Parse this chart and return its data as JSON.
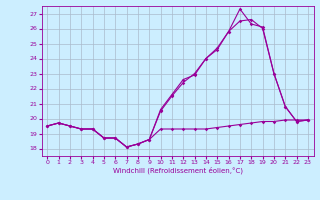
{
  "title": "",
  "xlabel": "Windchill (Refroidissement éolien,°C)",
  "background_color": "#cceeff",
  "line_color": "#990099",
  "grid_color": "#aabbcc",
  "xlim": [
    -0.5,
    23.5
  ],
  "ylim": [
    17.5,
    27.5
  ],
  "yticks": [
    18,
    19,
    20,
    21,
    22,
    23,
    24,
    25,
    26,
    27
  ],
  "xticks": [
    0,
    1,
    2,
    3,
    4,
    5,
    6,
    7,
    8,
    9,
    10,
    11,
    12,
    13,
    14,
    15,
    16,
    17,
    18,
    19,
    20,
    21,
    22,
    23
  ],
  "series1_x": [
    0,
    1,
    2,
    3,
    4,
    5,
    6,
    7,
    8,
    9,
    10,
    11,
    12,
    13,
    14,
    15,
    16,
    17,
    18,
    19,
    20,
    21,
    22,
    23
  ],
  "series1_y": [
    19.5,
    19.7,
    19.5,
    19.3,
    19.3,
    18.7,
    18.7,
    18.1,
    18.3,
    18.6,
    19.3,
    19.3,
    19.3,
    19.3,
    19.3,
    19.4,
    19.5,
    19.6,
    19.7,
    19.8,
    19.8,
    19.9,
    19.9,
    19.9
  ],
  "series2_x": [
    0,
    1,
    2,
    3,
    4,
    5,
    6,
    7,
    8,
    9,
    10,
    11,
    12,
    13,
    14,
    15,
    16,
    17,
    18,
    19,
    20,
    21,
    22,
    23
  ],
  "series2_y": [
    19.5,
    19.7,
    19.5,
    19.3,
    19.3,
    18.7,
    18.7,
    18.1,
    18.3,
    18.6,
    20.6,
    21.6,
    22.6,
    22.9,
    24.0,
    24.6,
    25.8,
    27.3,
    26.3,
    26.1,
    23.0,
    20.8,
    19.8,
    19.9
  ],
  "series3_x": [
    0,
    1,
    2,
    3,
    4,
    5,
    6,
    7,
    8,
    9,
    10,
    11,
    12,
    13,
    14,
    15,
    16,
    17,
    18,
    19,
    20,
    21,
    22,
    23
  ],
  "series3_y": [
    19.5,
    19.7,
    19.5,
    19.3,
    19.3,
    18.7,
    18.7,
    18.1,
    18.3,
    18.6,
    20.5,
    21.5,
    22.4,
    23.0,
    24.0,
    24.7,
    25.8,
    26.5,
    26.6,
    26.0,
    23.0,
    20.8,
    19.8,
    19.9
  ],
  "figwidth": 3.2,
  "figheight": 2.0,
  "dpi": 100
}
